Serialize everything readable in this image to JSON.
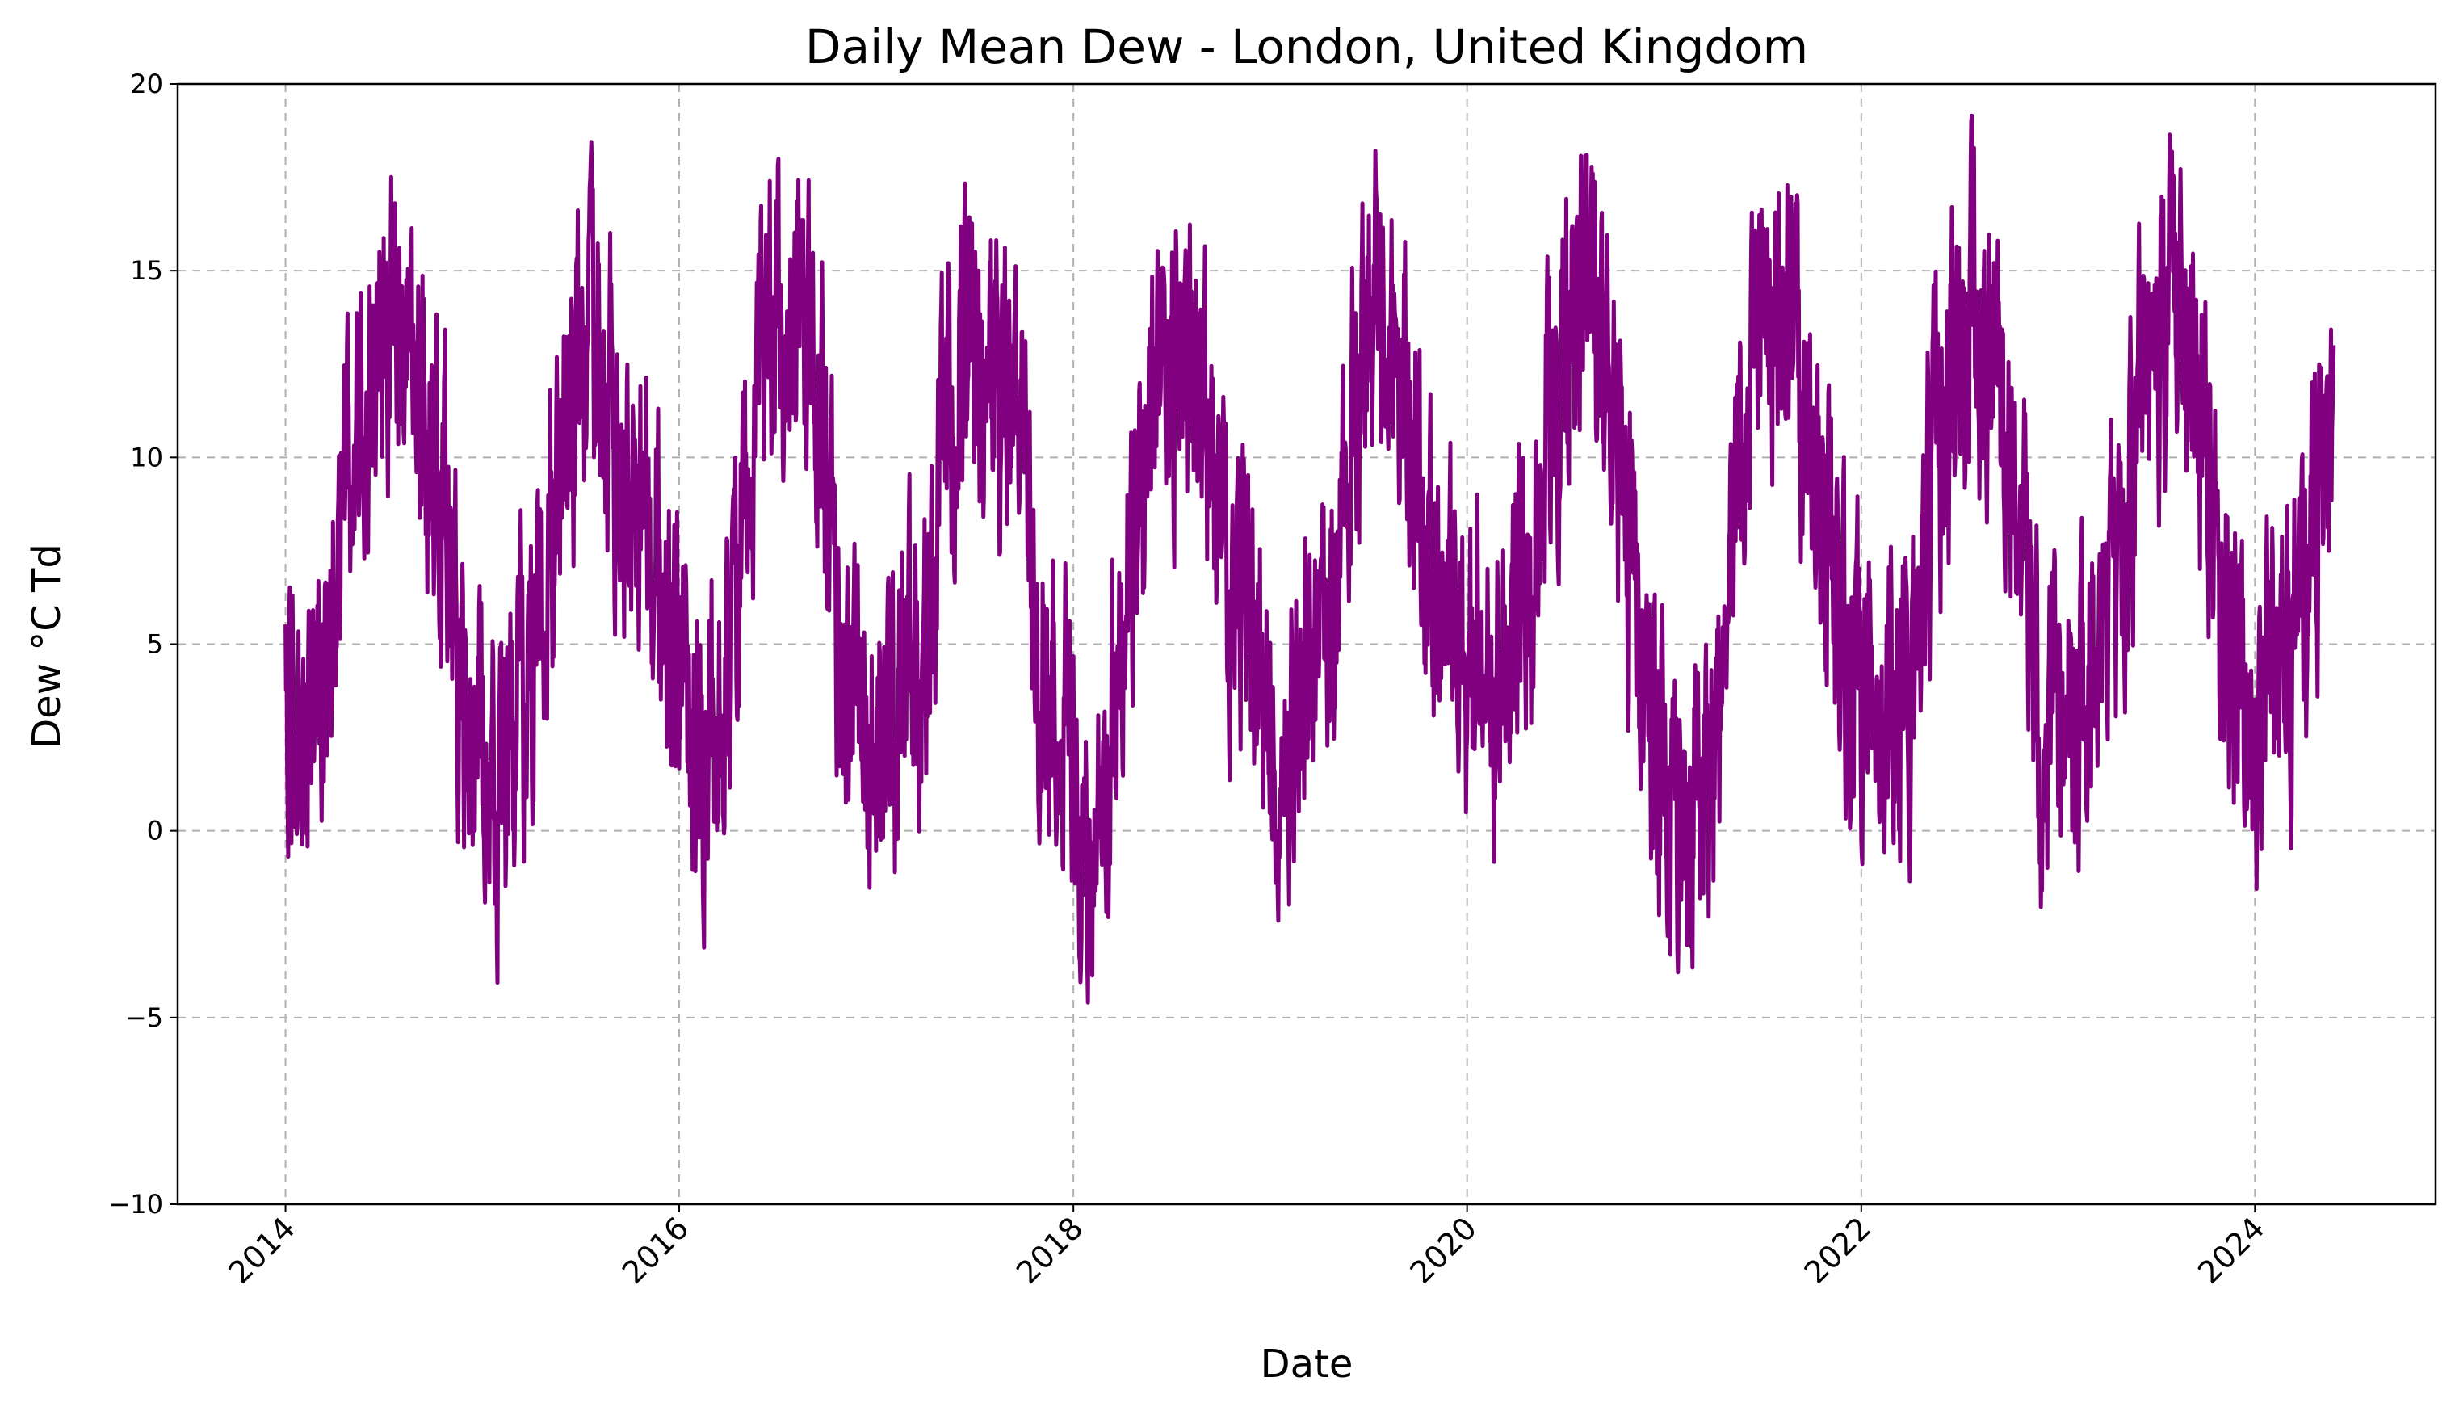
{
  "chart_data": {
    "type": "line",
    "title": "Daily Mean Dew - London, United Kingdom",
    "xlabel": "Date",
    "ylabel": "Dew °C Td",
    "ylim": [
      -10,
      20
    ],
    "xlim": [
      "2013-06-15",
      "2024-12-01"
    ],
    "x_ticks": [
      "2014",
      "2016",
      "2018",
      "2020",
      "2022",
      "2024"
    ],
    "y_ticks": [
      "−10",
      "−5",
      "0",
      "5",
      "10",
      "15",
      "20"
    ],
    "grid": true,
    "colors": {
      "line": "#800080",
      "grid": "#b0b0b0"
    },
    "series": [
      {
        "x": [
          "2014-01-01",
          "2014-02-01",
          "2014-03-01",
          "2014-04-01",
          "2014-05-01",
          "2014-06-01",
          "2014-07-01",
          "2014-08-01",
          "2014-09-01",
          "2014-10-01",
          "2014-11-01",
          "2014-12-01",
          "2015-01-01",
          "2015-02-01",
          "2015-03-01",
          "2015-04-01",
          "2015-05-01",
          "2015-06-01",
          "2015-07-01",
          "2015-08-01",
          "2015-09-01",
          "2015-10-01",
          "2015-11-01",
          "2015-12-01",
          "2016-01-01",
          "2016-02-01",
          "2016-03-01",
          "2016-04-01",
          "2016-05-01",
          "2016-06-01",
          "2016-07-01",
          "2016-08-01",
          "2016-09-01",
          "2016-10-01",
          "2016-11-01",
          "2016-12-01",
          "2017-01-01",
          "2017-02-01",
          "2017-03-01",
          "2017-04-01",
          "2017-05-01",
          "2017-06-01",
          "2017-07-01",
          "2017-08-01",
          "2017-09-01",
          "2017-10-01",
          "2017-11-01",
          "2017-12-01",
          "2018-01-01",
          "2018-02-01",
          "2018-03-01",
          "2018-04-01",
          "2018-05-01",
          "2018-06-01",
          "2018-07-01",
          "2018-08-01",
          "2018-09-01",
          "2018-10-01",
          "2018-11-01",
          "2018-12-01",
          "2019-01-01",
          "2019-02-01",
          "2019-03-01",
          "2019-04-01",
          "2019-05-01",
          "2019-06-01",
          "2019-07-01",
          "2019-08-01",
          "2019-09-01",
          "2019-10-01",
          "2019-11-01",
          "2019-12-01",
          "2020-01-01",
          "2020-02-01",
          "2020-03-01",
          "2020-04-01",
          "2020-05-01",
          "2020-06-01",
          "2020-07-01",
          "2020-08-01",
          "2020-09-01",
          "2020-10-01",
          "2020-11-01",
          "2020-12-01",
          "2021-01-01",
          "2021-02-01",
          "2021-03-01",
          "2021-04-01",
          "2021-05-01",
          "2021-06-01",
          "2021-07-01",
          "2021-08-01",
          "2021-09-01",
          "2021-10-01",
          "2021-11-01",
          "2021-12-01",
          "2022-01-01",
          "2022-02-01",
          "2022-03-01",
          "2022-04-01",
          "2022-05-01",
          "2022-06-01",
          "2022-07-01",
          "2022-08-01",
          "2022-09-01",
          "2022-10-01",
          "2022-11-01",
          "2022-12-01",
          "2023-01-01",
          "2023-02-01",
          "2023-03-01",
          "2023-04-01",
          "2023-05-01",
          "2023-06-01",
          "2023-07-01",
          "2023-08-01",
          "2023-09-01",
          "2023-10-01",
          "2023-11-01",
          "2023-12-01",
          "2024-01-01",
          "2024-02-01",
          "2024-03-01",
          "2024-04-01",
          "2024-05-01"
        ],
        "y": [
          5.0,
          4.0,
          4.5,
          6.5,
          9.5,
          12.0,
          14.0,
          13.0,
          12.0,
          10.0,
          7.0,
          3.0,
          2.0,
          1.0,
          3.0,
          4.5,
          7.5,
          10.5,
          12.5,
          13.0,
          10.5,
          8.5,
          7.5,
          6.0,
          5.0,
          2.0,
          3.0,
          4.5,
          8.0,
          12.0,
          13.5,
          14.0,
          13.5,
          9.0,
          4.0,
          3.0,
          2.0,
          3.0,
          4.5,
          4.5,
          9.5,
          12.5,
          13.0,
          12.5,
          11.0,
          9.5,
          4.5,
          2.5,
          3.0,
          0.0,
          1.0,
          5.0,
          9.0,
          11.5,
          13.0,
          13.0,
          11.0,
          8.0,
          6.0,
          5.0,
          3.5,
          2.0,
          4.0,
          5.0,
          7.0,
          11.0,
          13.5,
          13.5,
          12.0,
          9.0,
          6.0,
          5.0,
          4.5,
          4.5,
          3.5,
          5.0,
          7.5,
          11.5,
          13.0,
          14.5,
          12.0,
          10.0,
          7.5,
          4.0,
          1.0,
          0.5,
          2.0,
          1.5,
          6.0,
          11.5,
          13.5,
          13.5,
          13.0,
          10.0,
          7.0,
          5.0,
          3.5,
          3.0,
          3.0,
          4.0,
          8.0,
          11.0,
          13.0,
          14.0,
          12.0,
          10.0,
          8.0,
          2.0,
          3.0,
          2.0,
          3.5,
          4.5,
          7.5,
          12.5,
          13.5,
          13.5,
          13.0,
          10.5,
          6.0,
          5.0,
          1.0,
          5.5,
          5.0,
          6.0,
          9.0
        ]
      }
    ]
  }
}
